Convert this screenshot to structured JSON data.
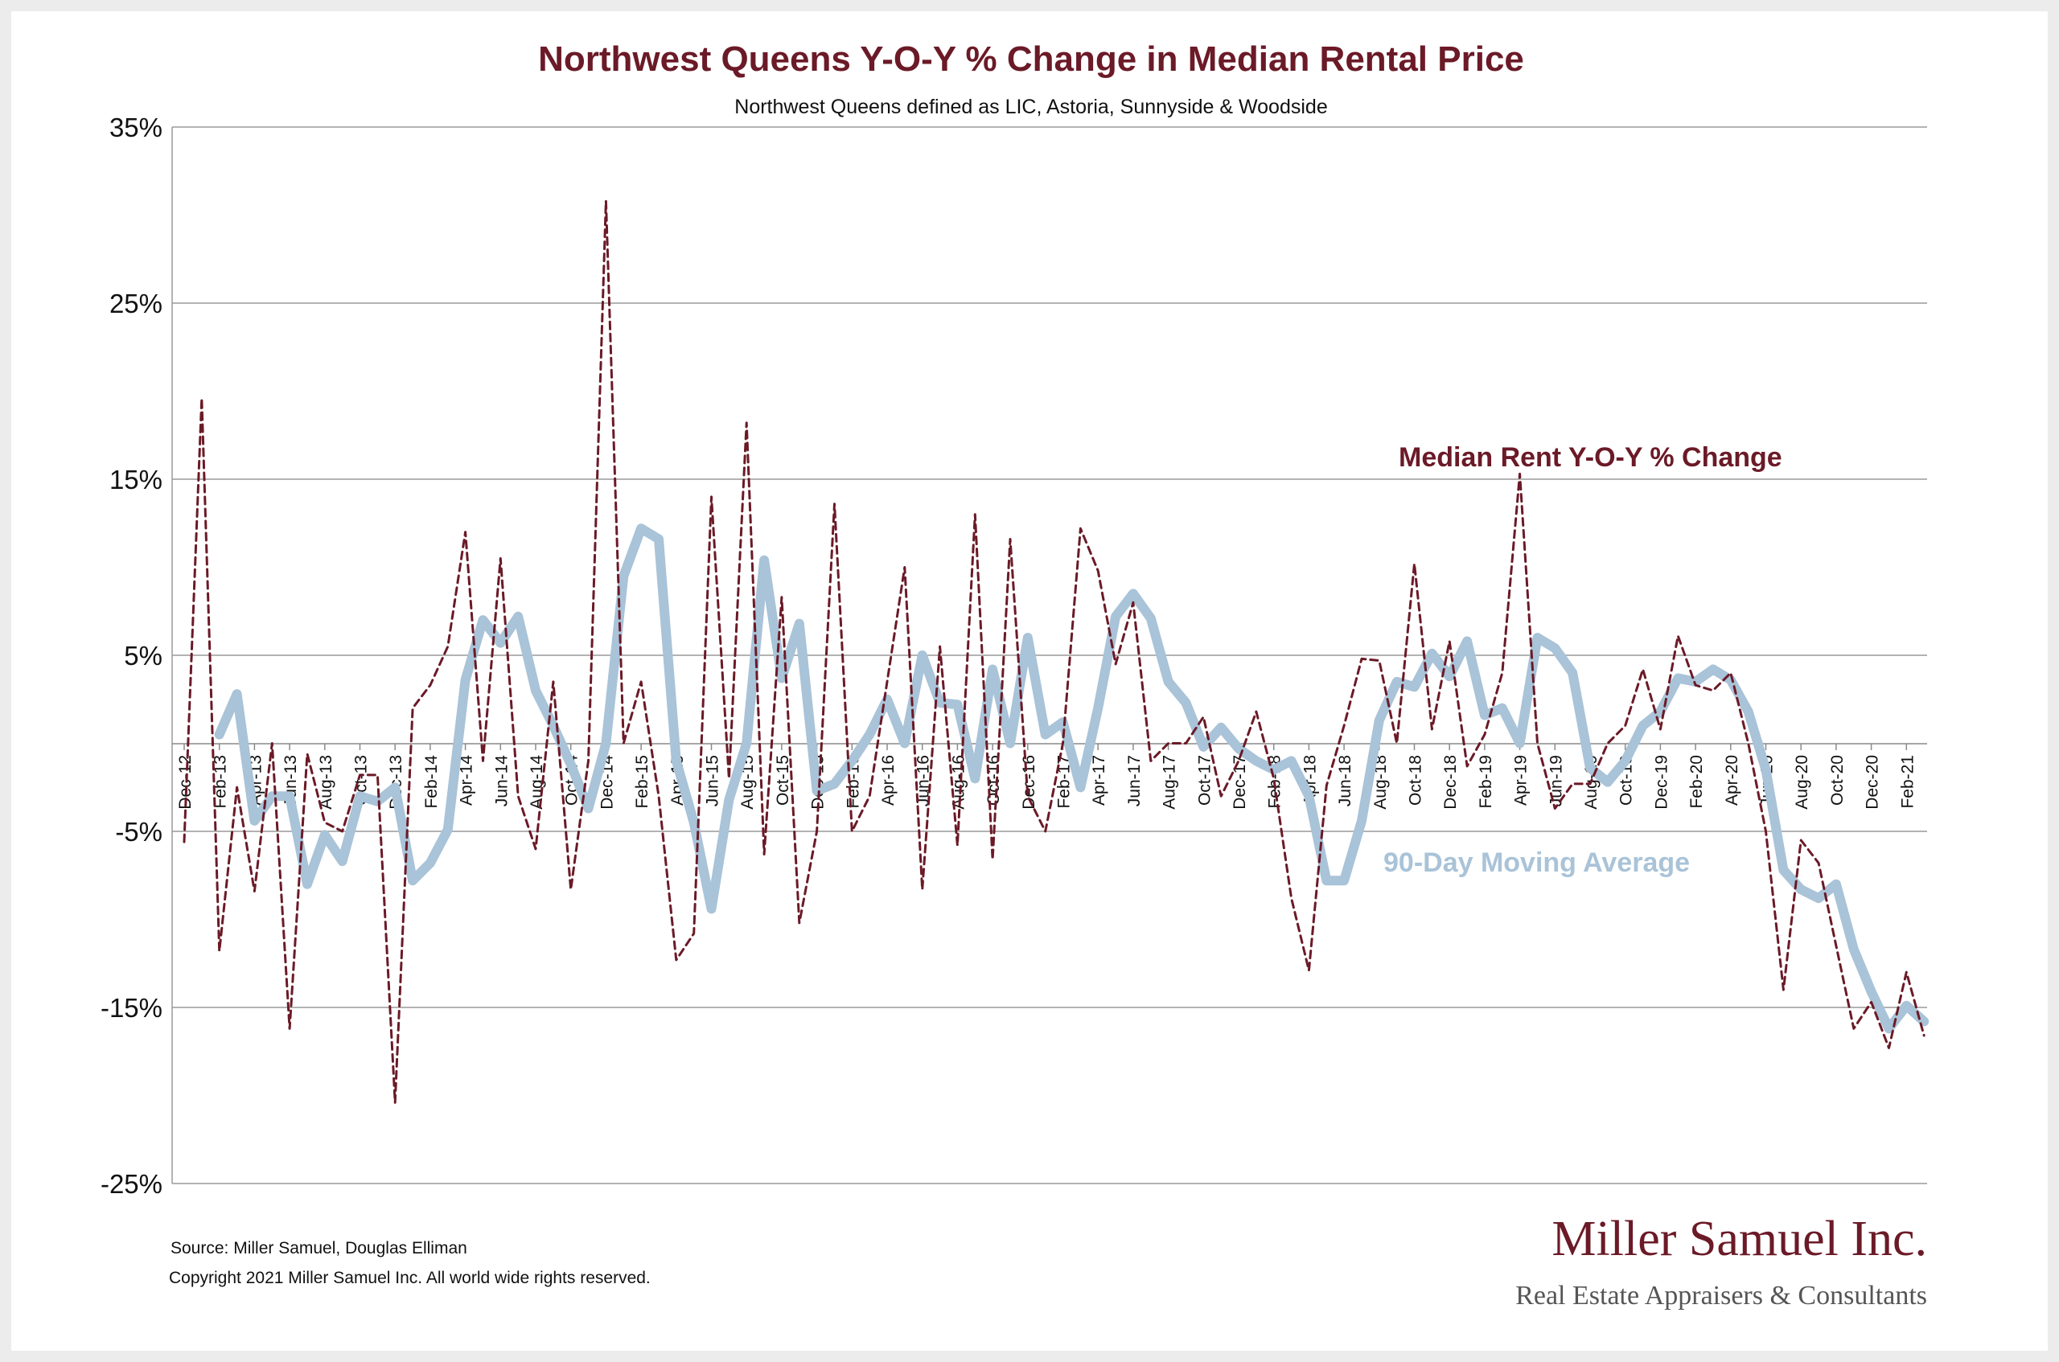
{
  "chart_data": {
    "type": "line",
    "title": "Northwest Queens Y-O-Y % Change in Median Rental Price",
    "subtitle": "Northwest Queens defined as LIC, Astoria, Sunnyside & Woodside",
    "ylim": [
      -25,
      35
    ],
    "yticks": [
      35,
      25,
      15,
      5,
      -5,
      -15,
      -25
    ],
    "ytick_labels": [
      "35%",
      "25%",
      "15%",
      "5%",
      "-5%",
      "-15%",
      "-25%"
    ],
    "x_tick_labels": [
      "Dec-12",
      "Feb-13",
      "Apr-13",
      "Jun-13",
      "Aug-13",
      "Oct-13",
      "Dec-13",
      "Feb-14",
      "Apr-14",
      "Jun-14",
      "Aug-14",
      "Oct-14",
      "Dec-14",
      "Feb-15",
      "Apr-15",
      "Jun-15",
      "Aug-15",
      "Oct-15",
      "Dec-15",
      "Feb-16",
      "Apr-16",
      "Jun-16",
      "Aug-16",
      "Oct-16",
      "Dec-16",
      "Feb-17",
      "Apr-17",
      "Jun-17",
      "Aug-17",
      "Oct-17",
      "Dec-17",
      "Feb-18",
      "Apr-18",
      "Jun-18",
      "Aug-18",
      "Oct-18",
      "Dec-18",
      "Feb-19",
      "Apr-19",
      "Jun-19",
      "Aug-19",
      "Oct-19",
      "Dec-19",
      "Feb-20",
      "Apr-20",
      "Jun-20",
      "Aug-20",
      "Oct-20",
      "Dec-20",
      "Feb-21"
    ],
    "grid": true,
    "series": [
      {
        "name": "Median Rent Y-O-Y % Change",
        "color": "#6b1a27",
        "style": "dashed",
        "start_index": 0,
        "values": [
          -5.6,
          19.6,
          -11.8,
          -2.5,
          -8.4,
          0.0,
          -16.2,
          -0.6,
          -4.5,
          -5.0,
          -1.8,
          -1.8,
          -20.4,
          2.0,
          3.3,
          5.5,
          12.0,
          -1.0,
          10.5,
          -3.0,
          -6.0,
          3.5,
          -8.3,
          -1.0,
          30.8,
          0.0,
          3.5,
          -3.0,
          -12.3,
          -10.8,
          14.0,
          -2.0,
          18.2,
          -6.3,
          8.3,
          -10.2,
          -5.0,
          13.6,
          -5.0,
          -3.0,
          3.5,
          10.0,
          -8.3,
          5.5,
          -5.8,
          13.0,
          -6.6,
          11.6,
          -3.0,
          -5.0,
          0.0,
          12.2,
          9.8,
          4.5,
          8.0,
          -1.0,
          0.0,
          0.0,
          1.5,
          -3.0,
          -1.0,
          1.8,
          -2.0,
          -8.8,
          -12.9,
          -2.4,
          1.0,
          4.8,
          4.7,
          0.0,
          10.2,
          0.8,
          5.8,
          -1.3,
          0.5,
          4.0,
          15.3,
          0.0,
          -3.7,
          -2.3,
          -2.3,
          0.0,
          1.0,
          4.2,
          0.8,
          6.1,
          3.3,
          3.0,
          4.0,
          0.0,
          -5.0,
          -14.0,
          -5.5,
          -6.8,
          -11.5,
          -16.2,
          -14.7,
          -17.3,
          -13.0,
          -16.6
        ]
      },
      {
        "name": "90-Day Moving Average",
        "color": "#a9c3d8",
        "style": "solid",
        "start_index": 2,
        "values": [
          0.5,
          2.8,
          -4.4,
          -3.0,
          -3.0,
          -8.0,
          -5.2,
          -6.7,
          -3.0,
          -3.3,
          -2.5,
          -7.8,
          -6.8,
          -4.9,
          3.6,
          7.0,
          5.7,
          7.2,
          3.0,
          1.0,
          -1.2,
          -3.7,
          0.0,
          9.5,
          12.2,
          11.6,
          -1.0,
          -4.5,
          -9.4,
          -3.2,
          0.0,
          10.4,
          3.7,
          6.8,
          -2.7,
          -2.3,
          -1.0,
          0.5,
          2.5,
          0.0,
          5.0,
          2.3,
          2.2,
          -2.0,
          4.2,
          0.0,
          6.0,
          0.5,
          1.2,
          -2.5,
          2.0,
          7.2,
          8.5,
          7.1,
          3.5,
          2.3,
          -0.2,
          0.9,
          -0.3,
          -1.0,
          -1.5,
          -1.0,
          -3.0,
          -7.8,
          -7.8,
          -4.4,
          1.3,
          3.5,
          3.2,
          5.1,
          3.8,
          5.8,
          1.6,
          2.0,
          0.0,
          6.0,
          5.4,
          4.0,
          -1.4,
          -2.2,
          -1.0,
          1.0,
          1.8,
          3.7,
          3.5,
          4.2,
          3.6,
          1.8,
          -1.5,
          -7.2,
          -8.3,
          -8.8,
          -8.0,
          -11.7,
          -14.1,
          -16.2,
          -14.9,
          -15.8
        ]
      }
    ],
    "annotations": {
      "rent_label": "Median Rent Y-O-Y % Change",
      "avg_label": "90-Day Moving Average"
    }
  },
  "footer": {
    "source": "Source: Miller Samuel, Douglas Elliman",
    "copyright": "Copyright 2021 Miller Samuel Inc.  All world wide rights reserved."
  },
  "logo": {
    "name": "Miller Samuel Inc.",
    "tagline": "Real Estate Appraisers & Consultants"
  }
}
